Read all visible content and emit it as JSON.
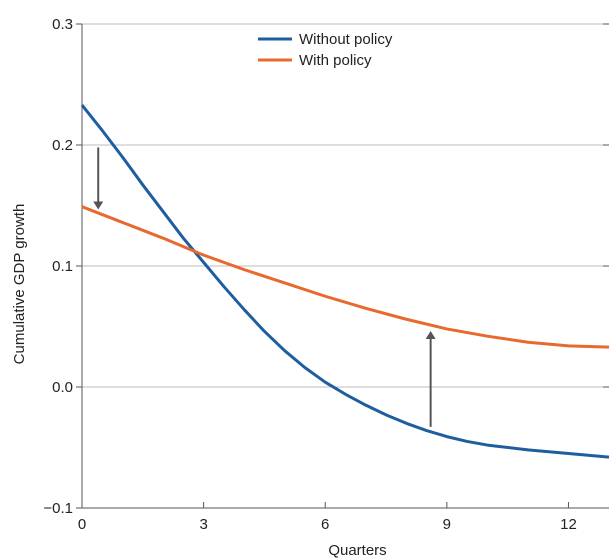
{
  "chart_data": {
    "type": "line",
    "title": "",
    "xlabel": "Quarters",
    "ylabel": "Cumulative GDP growth",
    "xlim": [
      0,
      13
    ],
    "ylim": [
      -0.1,
      0.3
    ],
    "xticks": [
      0,
      3,
      6,
      9,
      12
    ],
    "xtick_labels": [
      "0",
      "3",
      "6",
      "9",
      "12"
    ],
    "yticks": [
      -0.1,
      0.0,
      0.1,
      0.2,
      0.3
    ],
    "ytick_labels": [
      "−0.1",
      "0.0",
      "0.1",
      "0.2",
      "0.3"
    ],
    "grid": "horizontal",
    "legend": "top-center",
    "series": [
      {
        "name": "Without policy",
        "color": "#1f5e9e",
        "x": [
          0,
          0.5,
          1,
          1.5,
          2,
          2.5,
          3,
          3.5,
          4,
          4.5,
          5,
          5.5,
          6,
          6.5,
          7,
          7.5,
          8,
          8.5,
          9,
          9.5,
          10,
          11,
          12,
          13
        ],
        "y": [
          0.233,
          0.212,
          0.19,
          0.167,
          0.145,
          0.123,
          0.103,
          0.083,
          0.064,
          0.046,
          0.03,
          0.016,
          0.004,
          -0.006,
          -0.015,
          -0.023,
          -0.03,
          -0.036,
          -0.041,
          -0.045,
          -0.048,
          -0.052,
          -0.055,
          -0.058
        ]
      },
      {
        "name": "With policy",
        "color": "#e8692d",
        "x": [
          0,
          1,
          2,
          3,
          4,
          5,
          6,
          7,
          8,
          9,
          10,
          11,
          12,
          13
        ],
        "y": [
          0.149,
          0.136,
          0.123,
          0.109,
          0.097,
          0.086,
          0.075,
          0.065,
          0.056,
          0.048,
          0.042,
          0.037,
          0.034,
          0.033
        ]
      }
    ],
    "annotations": [
      {
        "type": "arrow",
        "from": [
          0.4,
          0.198
        ],
        "to": [
          0.4,
          0.15
        ],
        "color": "#555555"
      },
      {
        "type": "arrow",
        "from": [
          8.6,
          -0.033
        ],
        "to": [
          8.6,
          0.043
        ],
        "color": "#555555"
      }
    ]
  }
}
